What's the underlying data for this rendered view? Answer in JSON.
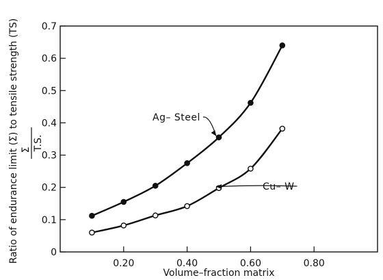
{
  "chart_data": {
    "type": "line",
    "xlabel": "Volume–fraction matrix",
    "ylabel": "Ratio of endurance limit (Σ) to tensile strength (TS)",
    "ylabel_formula": {
      "numerator": "Σ",
      "denominator": "T.S."
    },
    "xlim": [
      0.0,
      1.0
    ],
    "ylim": [
      0.0,
      0.7
    ],
    "xticks": [
      0.2,
      0.4,
      0.6,
      0.8
    ],
    "xtick_labels": [
      "0.20",
      "0.40",
      "0.60",
      "0.80"
    ],
    "yticks": [
      0,
      0.1,
      0.2,
      0.3,
      0.4,
      0.5,
      0.6,
      0.7
    ],
    "ytick_labels": [
      "0",
      "0.1",
      "0.2",
      "0.3",
      "0.4",
      "0.5",
      "0.6",
      "0.7"
    ],
    "grid": false,
    "series": [
      {
        "name": "Ag– Steel",
        "marker": "filled-circle",
        "x": [
          0.1,
          0.2,
          0.3,
          0.4,
          0.5,
          0.6,
          0.7
        ],
        "y": [
          0.112,
          0.155,
          0.205,
          0.275,
          0.355,
          0.462,
          0.64
        ]
      },
      {
        "name": "Cu– W",
        "marker": "open-circle",
        "x": [
          0.1,
          0.2,
          0.3,
          0.4,
          0.5,
          0.6,
          0.7
        ],
        "y": [
          0.06,
          0.082,
          0.113,
          0.142,
          0.198,
          0.258,
          0.382
        ]
      }
    ]
  }
}
